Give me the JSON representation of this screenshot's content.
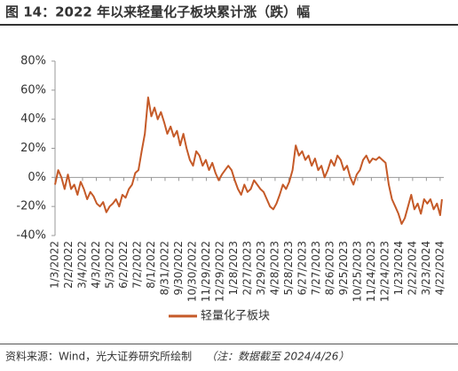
{
  "chart_data": {
    "type": "line",
    "title": "图 14：2022 年以来轻量化子板块累计涨（跌）幅",
    "source": "资料来源：Wind，光大证券研究所绘制",
    "note": "（注：数据截至 2024/4/26）",
    "x": [
      "1/3/2022",
      "1/10/2022",
      "1/17/2022",
      "1/24/2022",
      "1/31/2022",
      "2/7/2022",
      "2/14/2022",
      "2/21/2022",
      "2/28/2022",
      "3/7/2022",
      "3/14/2022",
      "3/21/2022",
      "3/28/2022",
      "4/4/2022",
      "4/11/2022",
      "4/18/2022",
      "4/25/2022",
      "5/2/2022",
      "5/9/2022",
      "5/16/2022",
      "5/23/2022",
      "5/30/2022",
      "6/6/2022",
      "6/13/2022",
      "6/20/2022",
      "6/27/2022",
      "7/4/2022",
      "7/11/2022",
      "7/18/2022",
      "7/25/2022",
      "8/1/2022",
      "8/8/2022",
      "8/15/2022",
      "8/22/2022",
      "8/29/2022",
      "9/5/2022",
      "9/12/2022",
      "9/19/2022",
      "9/26/2022",
      "10/3/2022",
      "10/10/2022",
      "10/17/2022",
      "10/24/2022",
      "10/31/2022",
      "11/7/2022",
      "11/14/2022",
      "11/21/2022",
      "11/28/2022",
      "12/5/2022",
      "12/12/2022",
      "12/19/2022",
      "12/26/2022",
      "1/2/2023",
      "1/9/2023",
      "1/16/2023",
      "1/23/2023",
      "1/30/2023",
      "2/6/2023",
      "2/13/2023",
      "2/20/2023",
      "2/27/2023",
      "3/6/2023",
      "3/13/2023",
      "3/20/2023",
      "3/27/2023",
      "4/3/2023",
      "4/10/2023",
      "4/17/2023",
      "4/24/2023",
      "5/1/2023",
      "5/8/2023",
      "5/15/2023",
      "5/22/2023",
      "5/29/2023",
      "6/5/2023",
      "6/12/2023",
      "6/19/2023",
      "6/26/2023",
      "7/3/2023",
      "7/10/2023",
      "7/17/2023",
      "7/24/2023",
      "7/31/2023",
      "8/7/2023",
      "8/14/2023",
      "8/21/2023",
      "8/28/2023",
      "9/4/2023",
      "9/11/2023",
      "9/18/2023",
      "9/25/2023",
      "10/2/2023",
      "10/9/2023",
      "10/16/2023",
      "10/23/2023",
      "10/30/2023",
      "11/6/2023",
      "11/13/2023",
      "11/20/2023",
      "11/27/2023",
      "12/4/2023",
      "12/11/2023",
      "12/18/2023",
      "12/25/2023",
      "1/1/2024",
      "1/8/2024",
      "1/15/2024",
      "1/22/2024",
      "1/29/2024",
      "2/5/2024",
      "2/12/2024",
      "2/19/2024",
      "2/26/2024",
      "3/4/2024",
      "3/11/2024",
      "3/18/2024",
      "3/25/2024",
      "4/1/2024",
      "4/8/2024",
      "4/15/2024",
      "4/22/2024",
      "4/26/2024"
    ],
    "series": [
      {
        "name": "轻量化子板块",
        "color": "#c55a28",
        "values": [
          -5,
          5,
          0,
          -8,
          2,
          -8,
          -5,
          -12,
          -3,
          -8,
          -15,
          -10,
          -13,
          -18,
          -20,
          -17,
          -24,
          -20,
          -18,
          -15,
          -20,
          -12,
          -14,
          -8,
          -5,
          3,
          5,
          18,
          30,
          55,
          42,
          48,
          40,
          45,
          38,
          30,
          35,
          28,
          32,
          22,
          30,
          20,
          12,
          8,
          18,
          15,
          8,
          12,
          5,
          10,
          3,
          -2,
          2,
          5,
          8,
          5,
          -2,
          -8,
          -12,
          -5,
          -10,
          -8,
          -2,
          -5,
          -8,
          -10,
          -15,
          -20,
          -22,
          -18,
          -12,
          -5,
          -8,
          -3,
          5,
          22,
          15,
          18,
          12,
          15,
          8,
          13,
          5,
          8,
          0,
          5,
          12,
          8,
          15,
          12,
          5,
          8,
          0,
          -5,
          2,
          5,
          12,
          15,
          10,
          13,
          12,
          14,
          12,
          10,
          -5,
          -15,
          -20,
          -25,
          -32,
          -28,
          -20,
          -12,
          -22,
          -18,
          -25,
          -15,
          -18,
          -15,
          -22,
          -18,
          -26,
          -15
        ]
      }
    ],
    "xlim": [
      "1/3/2022",
      "4/30/2024"
    ],
    "xticks": [
      "1/3/2022",
      "2/2/2022",
      "3/4/2022",
      "4/3/2022",
      "5/3/2022",
      "6/2/2022",
      "7/2/2022",
      "8/1/2022",
      "8/31/2022",
      "9/30/2022",
      "10/30/2022",
      "11/29/2022",
      "12/29/2022",
      "1/28/2023",
      "2/27/2023",
      "3/29/2023",
      "4/28/2023",
      "5/28/2023",
      "6/27/2023",
      "7/27/2023",
      "8/26/2023",
      "9/25/2023",
      "10/25/2023",
      "11/24/2023",
      "12/24/2023",
      "1/23/2024",
      "2/22/2024",
      "3/23/2024",
      "4/22/2024"
    ],
    "ylim": [
      -40,
      80
    ],
    "yticks": [
      {
        "value": -40,
        "label": "-40%"
      },
      {
        "value": -20,
        "label": "-20%"
      },
      {
        "value": 0,
        "label": "0%"
      },
      {
        "value": 20,
        "label": "20%"
      },
      {
        "value": 40,
        "label": "40%"
      },
      {
        "value": 60,
        "label": "60%"
      },
      {
        "value": 80,
        "label": "80%"
      }
    ]
  }
}
